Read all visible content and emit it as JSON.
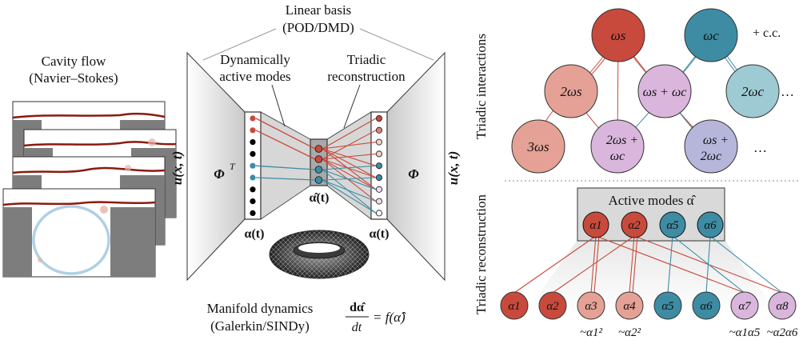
{
  "cavity": {
    "title_line1": "Cavity flow",
    "title_line2": "(Navier–Stokes)"
  },
  "basis": {
    "title_line1": "Linear basis",
    "title_line2": "(POD/DMD)"
  },
  "active_label": {
    "line1": "Dynamically",
    "line2": "active modes"
  },
  "triadic_label": {
    "line1": "Triadic",
    "line2": "reconstruction"
  },
  "encoder": {
    "input_label": "u(x, t)",
    "transform_label": "Φ",
    "transform_sup": "T",
    "latent_label": "α(t)",
    "reduced_label": "α̂(t)"
  },
  "decoder": {
    "latent_label": "α(t)",
    "transform_label": "Φ",
    "output_label": "u(x, t)"
  },
  "manifold": {
    "line1": "Manifold dynamics",
    "line2": "(Galerkin/SINDy)",
    "eq_num": "dα̂",
    "eq_den": "dt",
    "eq_rhs": "= f(α̂)"
  },
  "triadic_interactions": {
    "side_label": "Triadic interactions",
    "cc_label": "+ c.c.",
    "ellipsis": "…",
    "nodes": [
      {
        "label": "ωs"
      },
      {
        "label": "ωc"
      },
      {
        "label": "2ωs"
      },
      {
        "label": "ωs + ωc"
      },
      {
        "label": "2ωc"
      },
      {
        "label": "3ωs"
      },
      {
        "label": "2ωs + ωc"
      },
      {
        "label": "ωs + 2ωc"
      }
    ]
  },
  "reconstruction": {
    "side_label": "Triadic reconstruction",
    "active_title": "Active modes α̂",
    "active_nodes": [
      "α1",
      "α2",
      "α5",
      "α6"
    ],
    "bottom_nodes": [
      "α1",
      "α2",
      "α3",
      "α4",
      "α5",
      "α6",
      "α7",
      "α8"
    ],
    "approximations": [
      "~α1²",
      "~α2²",
      "~α1α5",
      "~α2α6"
    ]
  },
  "colors": {
    "red": "#c84a3c",
    "dark_red": "#8b1a10",
    "teal": "#3d8ca4",
    "dark_teal": "#1d5468",
    "light_red": "#e5a195",
    "pink": "#dab6dc",
    "light_teal": "#9ecad3",
    "lavender": "#b6b6da"
  }
}
